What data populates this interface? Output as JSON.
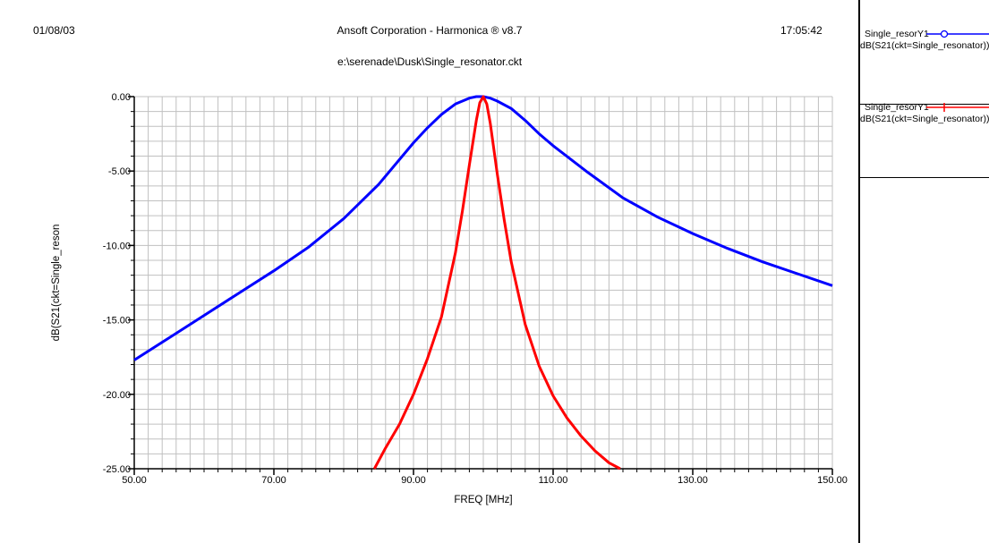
{
  "header": {
    "date": "01/08/03",
    "title": "Ansoft Corporation - Harmonica ® v8.7",
    "time": "17:05:42",
    "path": "e:\\serenade\\Dusk\\Single_resonator.ckt"
  },
  "legend": [
    {
      "name": "Single_resorY1",
      "expr": "dB(S21(ckt=Single_resonator))",
      "color": "#0000ff",
      "marker": "circle"
    },
    {
      "name": "Single_resorY1",
      "expr": "dB(S21(ckt=Single_resonator))",
      "color": "#ff0000",
      "marker": "plus"
    }
  ],
  "chart_data": {
    "type": "line",
    "title": "",
    "xlabel": "FREQ [MHz]",
    "ylabel": "dB(S21(ckt=Single_reson",
    "xlim": [
      50,
      150
    ],
    "ylim": [
      -25,
      0
    ],
    "xticks": [
      "50.00",
      "70.00",
      "90.00",
      "110.00",
      "130.00",
      "150.00"
    ],
    "yticks": [
      "0.00",
      "-5.00",
      "-10.00",
      "-15.00",
      "-20.00",
      "-25.00"
    ],
    "grid": true,
    "series": [
      {
        "name": "Single_resorY1",
        "color": "#0000ff",
        "x": [
          50,
          55,
          60,
          65,
          70,
          75,
          80,
          85,
          90,
          92,
          94,
          96,
          98,
          99,
          100,
          101,
          102,
          104,
          106,
          108,
          110,
          115,
          120,
          125,
          130,
          135,
          140,
          145,
          150
        ],
        "y": [
          -17.7,
          -16.2,
          -14.7,
          -13.2,
          -11.7,
          -10.1,
          -8.2,
          -5.9,
          -3.1,
          -2.1,
          -1.2,
          -0.5,
          -0.1,
          0,
          0,
          -0.1,
          -0.3,
          -0.8,
          -1.6,
          -2.5,
          -3.3,
          -5.1,
          -6.8,
          -8.1,
          -9.2,
          -10.2,
          -11.1,
          -11.9,
          -12.7
        ]
      },
      {
        "name": "Single_resorY1",
        "color": "#ff0000",
        "x": [
          84.4,
          86,
          88,
          90,
          92,
          94,
          96,
          97,
          98,
          99,
          99.5,
          100,
          100.5,
          101,
          102,
          103,
          104,
          106,
          108,
          110,
          112,
          114,
          116,
          118,
          119.6
        ],
        "y": [
          -25,
          -23.6,
          -22,
          -20,
          -17.6,
          -14.8,
          -10.5,
          -7.7,
          -4.6,
          -1.6,
          -0.4,
          0,
          -0.5,
          -1.8,
          -5.2,
          -8.3,
          -11.1,
          -15.3,
          -18.1,
          -20.1,
          -21.6,
          -22.8,
          -23.8,
          -24.6,
          -25
        ]
      }
    ]
  }
}
